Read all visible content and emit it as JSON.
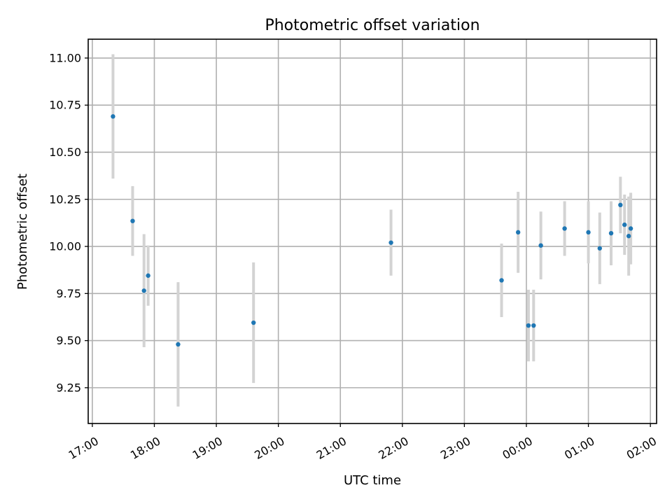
{
  "chart_data": {
    "type": "scatter",
    "title": "Photometric offset variation",
    "xlabel": "UTC time",
    "ylabel": "Photometric offset",
    "grid": true,
    "xlim": [
      "2000-01-01T16:56",
      "2000-01-02T02:06"
    ],
    "ylim": [
      9.06,
      11.1
    ],
    "x_tick_labels": [
      "17:00",
      "18:00",
      "19:00",
      "20:00",
      "21:00",
      "22:00",
      "23:00",
      "00:00",
      "01:00",
      "02:00"
    ],
    "x_ticks": [
      "2000-01-01T17:00",
      "2000-01-01T18:00",
      "2000-01-01T19:00",
      "2000-01-01T20:00",
      "2000-01-01T21:00",
      "2000-01-01T22:00",
      "2000-01-01T23:00",
      "2000-01-02T00:00",
      "2000-01-02T01:00",
      "2000-01-02T02:00"
    ],
    "y_tick_labels": [
      "9.25",
      "9.50",
      "9.75",
      "10.00",
      "10.25",
      "10.50",
      "10.75",
      "11.00"
    ],
    "y_ticks": [
      9.25,
      9.5,
      9.75,
      10.0,
      10.25,
      10.5,
      10.75,
      11.0
    ],
    "point_color": "#1f77b4",
    "errorbar_color": "#d3d3d3",
    "points": [
      {
        "x": "2000-01-01T17:20",
        "y": 10.69,
        "err": 0.33
      },
      {
        "x": "2000-01-01T17:39",
        "y": 10.135,
        "err": 0.185
      },
      {
        "x": "2000-01-01T17:50",
        "y": 9.765,
        "err": 0.3
      },
      {
        "x": "2000-01-01T17:54",
        "y": 9.845,
        "err": 0.16
      },
      {
        "x": "2000-01-01T18:23",
        "y": 9.48,
        "err": 0.33
      },
      {
        "x": "2000-01-01T19:36",
        "y": 9.595,
        "err": 0.32
      },
      {
        "x": "2000-01-01T21:49",
        "y": 10.02,
        "err": 0.175
      },
      {
        "x": "2000-01-01T23:36",
        "y": 9.82,
        "err": 0.195
      },
      {
        "x": "2000-01-01T23:52",
        "y": 10.075,
        "err": 0.215
      },
      {
        "x": "2000-01-02T00:02",
        "y": 9.58,
        "err": 0.19
      },
      {
        "x": "2000-01-02T00:07",
        "y": 9.58,
        "err": 0.19
      },
      {
        "x": "2000-01-02T00:14",
        "y": 10.005,
        "err": 0.18
      },
      {
        "x": "2000-01-02T00:37",
        "y": 10.095,
        "err": 0.145
      },
      {
        "x": "2000-01-02T01:00",
        "y": 10.075,
        "err": 0.165
      },
      {
        "x": "2000-01-02T01:11",
        "y": 9.99,
        "err": 0.19
      },
      {
        "x": "2000-01-02T01:22",
        "y": 10.07,
        "err": 0.17
      },
      {
        "x": "2000-01-02T01:31",
        "y": 10.22,
        "err": 0.15
      },
      {
        "x": "2000-01-02T01:35",
        "y": 10.115,
        "err": 0.16
      },
      {
        "x": "2000-01-02T01:39",
        "y": 10.055,
        "err": 0.21
      },
      {
        "x": "2000-01-02T01:41",
        "y": 10.095,
        "err": 0.19
      }
    ]
  }
}
